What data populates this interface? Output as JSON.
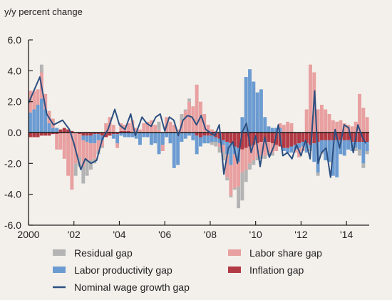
{
  "chart_data": {
    "type": "bar",
    "ylabel": "y/y percent change",
    "ylim": [
      -6.0,
      6.0
    ],
    "xlim": [
      2000.0,
      2015.0
    ],
    "y_ticks": [
      {
        "value": 6,
        "label": "6.0"
      },
      {
        "value": 4,
        "label": "4.0"
      },
      {
        "value": 2,
        "label": "2.0"
      },
      {
        "value": 0,
        "label": "0.0"
      },
      {
        "value": -2,
        "label": "-2.0"
      },
      {
        "value": -4,
        "label": "-4.0"
      },
      {
        "value": -6,
        "label": "-6.0"
      }
    ],
    "x_ticks": [
      {
        "value": 2000,
        "label": "2000"
      },
      {
        "value": 2002,
        "label": "'02"
      },
      {
        "value": 2004,
        "label": "'04"
      },
      {
        "value": 2006,
        "label": "'06"
      },
      {
        "value": 2008,
        "label": "'08"
      },
      {
        "value": 2010,
        "label": "'10"
      },
      {
        "value": 2012,
        "label": "'12"
      },
      {
        "value": 2014,
        "label": "'14"
      }
    ],
    "period_step": 0.1667,
    "x": [
      2000.0,
      2000.1667,
      2000.3333,
      2000.5,
      2000.6667,
      2000.8333,
      2001.0,
      2001.1667,
      2001.3333,
      2001.5,
      2001.6667,
      2001.8333,
      2002.0,
      2002.1667,
      2002.3333,
      2002.5,
      2002.6667,
      2002.8333,
      2003.0,
      2003.1667,
      2003.3333,
      2003.5,
      2003.6667,
      2003.8333,
      2004.0,
      2004.1667,
      2004.3333,
      2004.5,
      2004.6667,
      2004.8333,
      2005.0,
      2005.1667,
      2005.3333,
      2005.5,
      2005.6667,
      2005.8333,
      2006.0,
      2006.1667,
      2006.3333,
      2006.5,
      2006.6667,
      2006.8333,
      2007.0,
      2007.1667,
      2007.3333,
      2007.5,
      2007.6667,
      2007.8333,
      2008.0,
      2008.1667,
      2008.3333,
      2008.5,
      2008.6667,
      2008.8333,
      2009.0,
      2009.1667,
      2009.3333,
      2009.5,
      2009.6667,
      2009.8333,
      2010.0,
      2010.1667,
      2010.3333,
      2010.5,
      2010.6667,
      2010.8333,
      2011.0,
      2011.1667,
      2011.3333,
      2011.5,
      2011.6667,
      2011.8333,
      2012.0,
      2012.1667,
      2012.3333,
      2012.5,
      2012.6667,
      2012.8333,
      2013.0,
      2013.1667,
      2013.3333,
      2013.5,
      2013.6667,
      2013.8333,
      2014.0,
      2014.1667,
      2014.3333,
      2014.5,
      2014.6667,
      2014.8333
    ],
    "bar_series": [
      {
        "name": "Inflation gap",
        "color": "#b23a44",
        "values": [
          -0.3,
          -0.3,
          -0.3,
          -0.2,
          -0.2,
          -0.2,
          -0.1,
          -0.1,
          0.2,
          0.3,
          0.2,
          0.1,
          0.0,
          -0.1,
          -0.2,
          -0.2,
          -0.2,
          -0.1,
          -0.1,
          -0.2,
          -0.3,
          -0.2,
          -0.1,
          -0.1,
          0.1,
          0.1,
          0.1,
          0.0,
          0.0,
          0.0,
          0.0,
          0.0,
          0.0,
          0.0,
          0.0,
          0.0,
          0.0,
          0.0,
          0.0,
          0.0,
          0.0,
          0.0,
          0.0,
          0.0,
          -0.2,
          -0.3,
          -0.2,
          -0.2,
          -0.2,
          -0.3,
          -0.4,
          -0.5,
          -0.6,
          -0.7,
          -0.9,
          -1.0,
          -1.1,
          -1.0,
          -0.9,
          -0.8,
          -0.7,
          -0.6,
          -0.6,
          -0.6,
          -0.7,
          -0.8,
          -0.9,
          -1.0,
          -1.0,
          -0.9,
          -0.8,
          -0.7,
          -0.6,
          -0.7,
          -0.8,
          -0.7,
          -0.6,
          -0.5,
          -0.5,
          -0.5,
          -0.5,
          -0.5,
          -0.5,
          -0.5,
          -0.5,
          -0.6,
          -0.6,
          -0.6,
          -0.6,
          -0.6
        ]
      },
      {
        "name": "Labor productivity gap",
        "color": "#6b9bd1",
        "values": [
          1.3,
          1.5,
          1.8,
          2.2,
          1.5,
          0.6,
          0.3,
          0.3,
          0.0,
          0.0,
          0.0,
          0.0,
          0.0,
          0.0,
          -0.3,
          -0.4,
          -0.5,
          -0.6,
          -0.4,
          -0.3,
          0.0,
          0.0,
          -0.3,
          -0.6,
          -0.2,
          -0.3,
          -0.3,
          -0.3,
          -0.4,
          -0.8,
          -0.3,
          -0.3,
          -0.8,
          -0.7,
          -1.4,
          -0.8,
          -0.3,
          -0.7,
          -2.3,
          -2.1,
          -0.6,
          -0.4,
          -0.2,
          -0.5,
          -1.2,
          -0.6,
          -0.5,
          -0.5,
          -0.4,
          -0.3,
          -0.3,
          -0.3,
          -0.8,
          -1.4,
          -0.5,
          -0.9,
          1.0,
          3.6,
          4.1,
          3.3,
          2.6,
          2.8,
          1.0,
          0.4,
          0.3,
          0.3,
          0.3,
          -0.2,
          -0.3,
          -0.4,
          -0.3,
          -0.3,
          -0.3,
          -0.6,
          -0.2,
          -1.2,
          -2.0,
          -0.8,
          -1.3,
          -1.4,
          -2.3,
          -2.4,
          -0.9,
          -1.0,
          -0.6,
          -0.6,
          -0.4,
          -0.5,
          -1.4,
          -0.6
        ]
      },
      {
        "name": "Labor share gap",
        "color": "#e8a0a0",
        "values": [
          1.4,
          1.2,
          1.0,
          1.7,
          1.0,
          0.8,
          0.6,
          -1.0,
          -1.1,
          -1.7,
          -2.8,
          -3.7,
          -2.0,
          -1.5,
          -1.7,
          -1.2,
          -1.1,
          -1.0,
          -0.7,
          -0.4,
          0.6,
          1.0,
          0.5,
          -0.3,
          0.5,
          0.4,
          0.5,
          0.8,
          0.3,
          0.2,
          0.6,
          0.7,
          0.8,
          0.5,
          0.2,
          -0.4,
          1.0,
          0.7,
          0.5,
          0.2,
          0.8,
          1.4,
          2.0,
          1.7,
          3.1,
          2.0,
          1.2,
          0.5,
          0.2,
          0.1,
          -0.2,
          -0.5,
          -1.5,
          -2.0,
          -2.2,
          -1.6,
          -1.5,
          -1.4,
          -1.1,
          -1.0,
          -0.9,
          -0.9,
          -0.9,
          -0.7,
          -0.6,
          -0.4,
          0.3,
          0.5,
          0.7,
          0.6,
          -0.2,
          -0.6,
          -0.3,
          1.5,
          4.4,
          3.9,
          1.5,
          1.8,
          1.5,
          1.2,
          0.8,
          0.7,
          0.8,
          0.6,
          0.5,
          0.4,
          0.7,
          2.5,
          1.6,
          1.0
        ]
      },
      {
        "name": "Residual gap",
        "color": "#b4b4b4",
        "values": [
          0.0,
          0.0,
          0.0,
          0.5,
          0.0,
          0.0,
          0.0,
          0.0,
          0.0,
          0.0,
          0.0,
          0.0,
          -0.8,
          -0.6,
          -1.1,
          -1.0,
          -0.6,
          -0.3,
          -0.2,
          -0.1,
          0.0,
          0.0,
          0.0,
          0.0,
          0.0,
          0.0,
          0.0,
          0.0,
          0.0,
          0.0,
          0.0,
          0.0,
          0.0,
          0.0,
          0.5,
          0.0,
          0.0,
          0.0,
          0.0,
          0.0,
          0.4,
          0.1,
          0.2,
          0.0,
          0.0,
          0.0,
          0.0,
          0.0,
          -0.2,
          -0.3,
          -0.4,
          -0.5,
          -0.2,
          -0.1,
          -0.1,
          -1.4,
          -1.8,
          -0.8,
          -0.4,
          -0.3,
          -0.2,
          -0.2,
          -0.2,
          -0.2,
          -0.2,
          0.0,
          0.0,
          0.0,
          0.0,
          0.0,
          0.0,
          0.0,
          0.0,
          0.0,
          -0.2,
          0.0,
          -0.2,
          -0.1,
          0.0,
          0.0,
          0.0,
          0.0,
          0.0,
          0.0,
          0.0,
          0.0,
          -0.2,
          -0.4,
          -0.3,
          -0.2
        ]
      }
    ],
    "line_series": {
      "name": "Nominal wage growth gap",
      "color": "#2c4f80",
      "x": [
        2000.0,
        2000.5,
        2000.8,
        2001.1,
        2001.5,
        2001.8,
        2002.0,
        2002.3,
        2002.5,
        2002.75,
        2003.0,
        2003.25,
        2003.5,
        2003.8,
        2004.0,
        2004.25,
        2004.5,
        2004.7,
        2005.0,
        2005.2,
        2005.4,
        2005.6,
        2005.8,
        2006.0,
        2006.2,
        2006.4,
        2006.6,
        2006.8,
        2007.0,
        2007.2,
        2007.4,
        2007.6,
        2007.8,
        2008.0,
        2008.2,
        2008.4,
        2008.6,
        2008.8,
        2009.0,
        2009.2,
        2009.4,
        2009.6,
        2009.8,
        2010.0,
        2010.2,
        2010.4,
        2010.6,
        2010.8,
        2011.0,
        2011.2,
        2011.4,
        2011.6,
        2011.8,
        2012.0,
        2012.2,
        2012.4,
        2012.6,
        2012.75,
        2012.9,
        2013.1,
        2013.3,
        2013.5,
        2013.7,
        2013.9,
        2014.1,
        2014.3,
        2014.5,
        2014.7,
        2014.85
      ],
      "values": [
        1.9,
        3.6,
        1.2,
        0.5,
        0.8,
        0.2,
        -0.7,
        -2.4,
        -1.7,
        -2.0,
        -1.8,
        -0.4,
        0.2,
        1.5,
        0.5,
        0.2,
        1.2,
        -0.2,
        1.0,
        0.6,
        0.4,
        1.0,
        1.2,
        0.1,
        1.0,
        0.8,
        -0.2,
        0.8,
        1.1,
        1.0,
        0.5,
        1.1,
        0.2,
        0.0,
        -0.2,
        0.5,
        -2.7,
        -1.0,
        -0.6,
        -2.0,
        0.0,
        0.6,
        -1.3,
        -0.2,
        -2.2,
        -0.3,
        -1.6,
        -0.9,
        0.5,
        -1.5,
        -1.3,
        -1.7,
        -0.8,
        -1.5,
        -0.5,
        -1.7,
        2.7,
        -2.0,
        -1.3,
        -1.0,
        -2.9,
        0.2,
        -1.0,
        0.5,
        0.3,
        -1.3,
        0.5,
        -0.3,
        -0.7
      ]
    }
  },
  "legend": {
    "residual_gap": "Residual gap",
    "labor_share_gap": "Labor share gap",
    "labor_productivity_gap": "Labor productivity gap",
    "inflation_gap": "Inflation gap",
    "nominal_wage_growth_gap": "Nominal wage growth gap"
  }
}
